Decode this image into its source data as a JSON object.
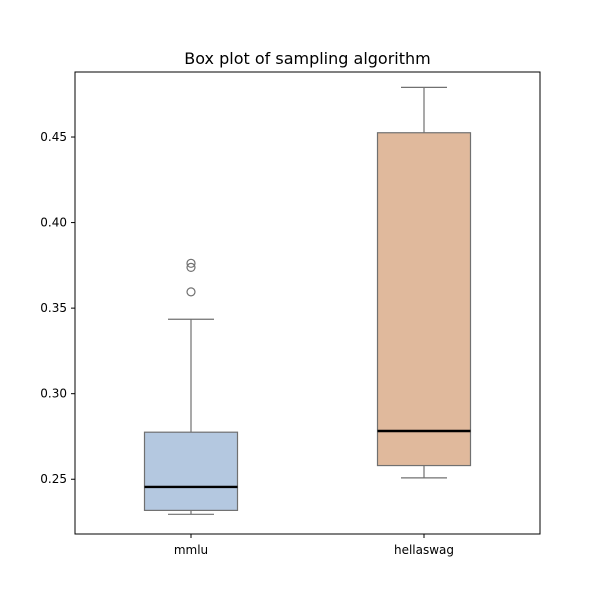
{
  "chart_data": {
    "type": "box",
    "title": "Box plot of sampling algorithm",
    "xlabel": "",
    "ylabel": "",
    "categories": [
      "mmlu",
      "hellaswag"
    ],
    "ylim": [
      0.218,
      0.488
    ],
    "yticks": [
      0.25,
      0.3,
      0.35,
      0.4,
      0.45
    ],
    "ytick_labels": [
      "0.25",
      "0.30",
      "0.35",
      "0.40",
      "0.45"
    ],
    "grid": false,
    "boxes": [
      {
        "category": "mmlu",
        "whisker_low": 0.2295,
        "q1": 0.2318,
        "median": 0.2455,
        "q3": 0.2775,
        "whisker_high": 0.3435,
        "outliers": [
          0.3595,
          0.3738,
          0.3762
        ],
        "color": "#b4c8e0"
      },
      {
        "category": "hellaswag",
        "whisker_low": 0.2508,
        "q1": 0.258,
        "median": 0.2782,
        "q3": 0.4525,
        "whisker_high": 0.479,
        "outliers": [],
        "color": "#e0b99c"
      }
    ],
    "colors": {
      "box_edge": "#707070",
      "median": "#000000",
      "axes": "#000000"
    }
  }
}
